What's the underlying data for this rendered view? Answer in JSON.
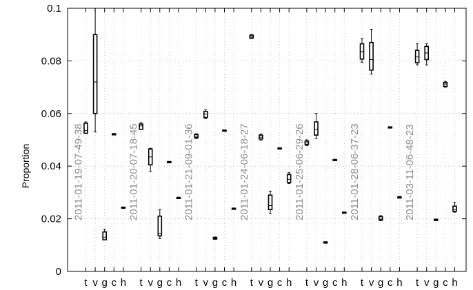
{
  "chart_data": {
    "type": "boxplot",
    "ylabel": "Proportion",
    "ylim": [
      0,
      0.1
    ],
    "yticks": [
      0,
      0.02,
      0.04,
      0.06,
      0.08,
      0.1
    ],
    "ytick_labels": [
      "0",
      "0.02",
      "0.04",
      "0.06",
      "0.08",
      "0.1"
    ],
    "grid": true,
    "categories": [
      "t",
      "v",
      "g",
      "c",
      "h"
    ],
    "groups": [
      {
        "label": "2011-01-19-07-49-38",
        "boxes": [
          {
            "cat": "t",
            "min": 0.0525,
            "q1": 0.0525,
            "median": 0.0535,
            "q3": 0.0563,
            "max": 0.0568
          },
          {
            "cat": "v",
            "min": 0.053,
            "q1": 0.06,
            "median": 0.072,
            "q3": 0.09,
            "max": 0.1
          },
          {
            "cat": "g",
            "min": 0.012,
            "q1": 0.012,
            "median": 0.013,
            "q3": 0.015,
            "max": 0.016
          },
          {
            "cat": "c",
            "min": 0.0519,
            "q1": 0.0519,
            "median": 0.0521,
            "q3": 0.0523,
            "max": 0.0524
          },
          {
            "cat": "h",
            "min": 0.0242,
            "q1": 0.0242,
            "median": 0.0243,
            "q3": 0.0244,
            "max": 0.0245
          }
        ]
      },
      {
        "label": "2011-01-20-07-18-45",
        "boxes": [
          {
            "cat": "t",
            "min": 0.054,
            "q1": 0.054,
            "median": 0.0553,
            "q3": 0.056,
            "max": 0.0565
          },
          {
            "cat": "v",
            "min": 0.038,
            "q1": 0.0405,
            "median": 0.0435,
            "q3": 0.0465,
            "max": 0.0468
          },
          {
            "cat": "g",
            "min": 0.0125,
            "q1": 0.0135,
            "median": 0.0145,
            "q3": 0.021,
            "max": 0.0235
          },
          {
            "cat": "c",
            "min": 0.0415,
            "q1": 0.0415,
            "median": 0.0416,
            "q3": 0.0417,
            "max": 0.0418
          },
          {
            "cat": "h",
            "min": 0.0279,
            "q1": 0.0279,
            "median": 0.028,
            "q3": 0.0281,
            "max": 0.0282
          }
        ]
      },
      {
        "label": "2011-01-21-09-01-36",
        "boxes": [
          {
            "cat": "t",
            "min": 0.0505,
            "q1": 0.0508,
            "median": 0.0513,
            "q3": 0.052,
            "max": 0.0523
          },
          {
            "cat": "v",
            "min": 0.058,
            "q1": 0.0585,
            "median": 0.0598,
            "q3": 0.0608,
            "max": 0.0615
          },
          {
            "cat": "g",
            "min": 0.0122,
            "q1": 0.0123,
            "median": 0.0126,
            "q3": 0.0129,
            "max": 0.0131
          },
          {
            "cat": "c",
            "min": 0.0535,
            "q1": 0.0535,
            "median": 0.0536,
            "q3": 0.0537,
            "max": 0.0538
          },
          {
            "cat": "h",
            "min": 0.0238,
            "q1": 0.0238,
            "median": 0.0239,
            "q3": 0.024,
            "max": 0.0241
          }
        ]
      },
      {
        "label": "2011-01-24-06-18-27",
        "boxes": [
          {
            "cat": "t",
            "min": 0.0885,
            "q1": 0.0887,
            "median": 0.0893,
            "q3": 0.0898,
            "max": 0.09
          },
          {
            "cat": "v",
            "min": 0.0498,
            "q1": 0.0503,
            "median": 0.051,
            "q3": 0.0518,
            "max": 0.0522
          },
          {
            "cat": "g",
            "min": 0.022,
            "q1": 0.0235,
            "median": 0.025,
            "q3": 0.029,
            "max": 0.0305
          },
          {
            "cat": "c",
            "min": 0.0467,
            "q1": 0.0467,
            "median": 0.0468,
            "q3": 0.0469,
            "max": 0.047
          },
          {
            "cat": "h",
            "min": 0.0334,
            "q1": 0.0338,
            "median": 0.035,
            "q3": 0.0368,
            "max": 0.0375
          }
        ]
      },
      {
        "label": "2011-01-25-06-29-26",
        "boxes": [
          {
            "cat": "t",
            "min": 0.0478,
            "q1": 0.0482,
            "median": 0.0488,
            "q3": 0.0495,
            "max": 0.05
          },
          {
            "cat": "v",
            "min": 0.0505,
            "q1": 0.0518,
            "median": 0.054,
            "q3": 0.0568,
            "max": 0.06
          },
          {
            "cat": "g",
            "min": 0.0107,
            "q1": 0.0108,
            "median": 0.011,
            "q3": 0.0112,
            "max": 0.0113
          },
          {
            "cat": "c",
            "min": 0.0423,
            "q1": 0.0423,
            "median": 0.0424,
            "q3": 0.0425,
            "max": 0.0426
          },
          {
            "cat": "h",
            "min": 0.0223,
            "q1": 0.0223,
            "median": 0.0224,
            "q3": 0.0225,
            "max": 0.0226
          }
        ]
      },
      {
        "label": "2011-01-28-06-37-23",
        "boxes": [
          {
            "cat": "t",
            "min": 0.0795,
            "q1": 0.0807,
            "median": 0.0835,
            "q3": 0.0865,
            "max": 0.0885
          },
          {
            "cat": "v",
            "min": 0.075,
            "q1": 0.0765,
            "median": 0.0805,
            "q3": 0.087,
            "max": 0.092
          },
          {
            "cat": "g",
            "min": 0.0193,
            "q1": 0.0195,
            "median": 0.0199,
            "q3": 0.0208,
            "max": 0.0212
          },
          {
            "cat": "c",
            "min": 0.0547,
            "q1": 0.0547,
            "median": 0.0548,
            "q3": 0.0549,
            "max": 0.055
          },
          {
            "cat": "h",
            "min": 0.0279,
            "q1": 0.0279,
            "median": 0.028,
            "q3": 0.0283,
            "max": 0.0285
          }
        ]
      },
      {
        "label": "2011-03-11-06-48-23",
        "boxes": [
          {
            "cat": "t",
            "min": 0.0785,
            "q1": 0.0793,
            "median": 0.0815,
            "q3": 0.084,
            "max": 0.0865
          },
          {
            "cat": "v",
            "min": 0.0785,
            "q1": 0.0805,
            "median": 0.083,
            "q3": 0.0855,
            "max": 0.0865
          },
          {
            "cat": "g",
            "min": 0.0193,
            "q1": 0.0194,
            "median": 0.0196,
            "q3": 0.0198,
            "max": 0.0199
          },
          {
            "cat": "c",
            "min": 0.07,
            "q1": 0.0703,
            "median": 0.0712,
            "q3": 0.0718,
            "max": 0.0722
          },
          {
            "cat": "h",
            "min": 0.0225,
            "q1": 0.0228,
            "median": 0.0235,
            "q3": 0.0248,
            "max": 0.0262
          }
        ]
      }
    ]
  }
}
